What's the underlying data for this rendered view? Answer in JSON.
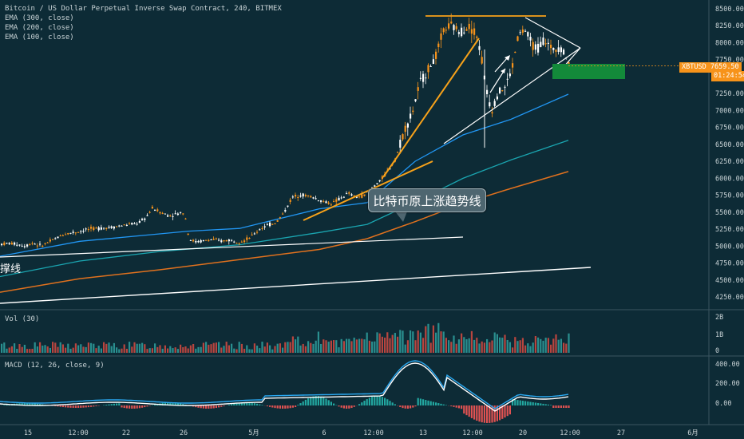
{
  "header": {
    "title": "Bitcoin / US Dollar Perpetual Inverse Swap Contract, 240, BITMEX",
    "ema300": "EMA (300, close)",
    "ema200": "EMA (200, close)",
    "ema100": "EMA (100, close)"
  },
  "volume_pane": {
    "title": "Vol (30)",
    "ticks": [
      "2B",
      "1B",
      "0"
    ]
  },
  "macd_pane": {
    "title": "MACD (12, 26, close, 9)",
    "ticks": [
      "400.00",
      "200.00",
      "0.00",
      "-200.00"
    ]
  },
  "price_axis": {
    "ticks": [
      "8500.00",
      "8250.00",
      "8000.00",
      "7750.00",
      "7500.00",
      "7250.00",
      "7000.00",
      "6750.00",
      "6500.00",
      "6250.00",
      "6000.00",
      "5750.00",
      "5500.00",
      "5250.00",
      "5000.00",
      "4750.00",
      "4500.00",
      "4250.00"
    ]
  },
  "time_axis": {
    "ticks": [
      "15",
      "12:00",
      "22",
      "26",
      "5月",
      "6",
      "12:00",
      "13",
      "12:00",
      "20",
      "12:00",
      "27",
      "6月"
    ]
  },
  "price_tag": {
    "symbol": "XBTUSD",
    "price": "7659.50",
    "countdown": "01:24:54"
  },
  "annotations": {
    "callout_text": "比特币原上涨趋势线",
    "support_label": "撑线"
  },
  "colors": {
    "background": "#0d2b36",
    "candle_up": "#f7931a",
    "candle_down": "#ffffff",
    "ema300": "#e0711e",
    "ema200": "#1aa5b0",
    "ema100": "#2196f3",
    "trend_orange": "#f7a21a",
    "trend_white": "#ffffff",
    "target_box": "#138a3a",
    "macd_line": "#2aa8f0",
    "signal_line": "#ffffff"
  },
  "chart_data": {
    "type": "candlestick",
    "title": "Bitcoin / US Dollar Perpetual Inverse Swap Contract, 240, BITMEX",
    "ylim": [
      4150,
      8600
    ],
    "x_ticks": [
      "15",
      "12:00",
      "22",
      "26",
      "5月",
      "6",
      "12:00",
      "13",
      "12:00",
      "20",
      "12:00",
      "27",
      "6月"
    ],
    "price_path": [
      [
        0,
        5030
      ],
      [
        10,
        5040
      ],
      [
        20,
        5030
      ],
      [
        30,
        5000
      ],
      [
        40,
        5050
      ],
      [
        50,
        5000
      ],
      [
        60,
        5060
      ],
      [
        70,
        5120
      ],
      [
        80,
        5180
      ],
      [
        90,
        5200
      ],
      [
        100,
        5220
      ],
      [
        110,
        5250
      ],
      [
        120,
        5260
      ],
      [
        130,
        5270
      ],
      [
        140,
        5280
      ],
      [
        150,
        5300
      ],
      [
        160,
        5320
      ],
      [
        170,
        5330
      ],
      [
        180,
        5400
      ],
      [
        190,
        5560
      ],
      [
        200,
        5500
      ],
      [
        210,
        5450
      ],
      [
        220,
        5470
      ],
      [
        230,
        5500
      ],
      [
        236,
        5100
      ],
      [
        245,
        5060
      ],
      [
        255,
        5080
      ],
      [
        265,
        5100
      ],
      [
        275,
        5070
      ],
      [
        285,
        5090
      ],
      [
        295,
        5070
      ],
      [
        305,
        5080
      ],
      [
        315,
        5150
      ],
      [
        325,
        5260
      ],
      [
        335,
        5310
      ],
      [
        345,
        5350
      ],
      [
        355,
        5500
      ],
      [
        365,
        5720
      ],
      [
        375,
        5760
      ],
      [
        385,
        5740
      ],
      [
        395,
        5700
      ],
      [
        405,
        5650
      ],
      [
        415,
        5630
      ],
      [
        425,
        5700
      ],
      [
        435,
        5780
      ],
      [
        445,
        5720
      ],
      [
        455,
        5750
      ],
      [
        465,
        5860
      ],
      [
        475,
        5960
      ],
      [
        485,
        6110
      ],
      [
        495,
        6300
      ],
      [
        505,
        6700
      ],
      [
        515,
        6950
      ],
      [
        525,
        7400
      ],
      [
        535,
        7600
      ],
      [
        545,
        7800
      ],
      [
        555,
        8200
      ],
      [
        565,
        8250
      ],
      [
        575,
        8150
      ],
      [
        585,
        8250
      ],
      [
        595,
        8150
      ],
      [
        602,
        7800
      ],
      [
        608,
        7300
      ],
      [
        615,
        7000
      ],
      [
        622,
        7250
      ],
      [
        632,
        7350
      ],
      [
        640,
        7600
      ],
      [
        648,
        8100
      ],
      [
        656,
        8200
      ],
      [
        664,
        8000
      ],
      [
        672,
        7900
      ],
      [
        680,
        8050
      ],
      [
        690,
        7900
      ],
      [
        700,
        7950
      ],
      [
        708,
        7800
      ],
      [
        712,
        7660
      ]
    ],
    "ema100": [
      [
        0,
        4850
      ],
      [
        100,
        5070
      ],
      [
        200,
        5180
      ],
      [
        236,
        5220
      ],
      [
        300,
        5260
      ],
      [
        400,
        5550
      ],
      [
        460,
        5640
      ],
      [
        520,
        6250
      ],
      [
        580,
        6640
      ],
      [
        640,
        6870
      ],
      [
        712,
        7240
      ]
    ],
    "ema200": [
      [
        0,
        4550
      ],
      [
        100,
        4780
      ],
      [
        200,
        4920
      ],
      [
        300,
        5020
      ],
      [
        400,
        5200
      ],
      [
        460,
        5320
      ],
      [
        520,
        5650
      ],
      [
        580,
        6000
      ],
      [
        640,
        6270
      ],
      [
        712,
        6560
      ]
    ],
    "ema300": [
      [
        0,
        4320
      ],
      [
        100,
        4520
      ],
      [
        200,
        4650
      ],
      [
        300,
        4800
      ],
      [
        400,
        4950
      ],
      [
        460,
        5110
      ],
      [
        520,
        5360
      ],
      [
        580,
        5630
      ],
      [
        640,
        5850
      ],
      [
        712,
        6100
      ]
    ],
    "volume": {
      "ylim": [
        0,
        2000000000
      ]
    },
    "macd": {
      "ylim": [
        -220,
        470
      ]
    }
  }
}
